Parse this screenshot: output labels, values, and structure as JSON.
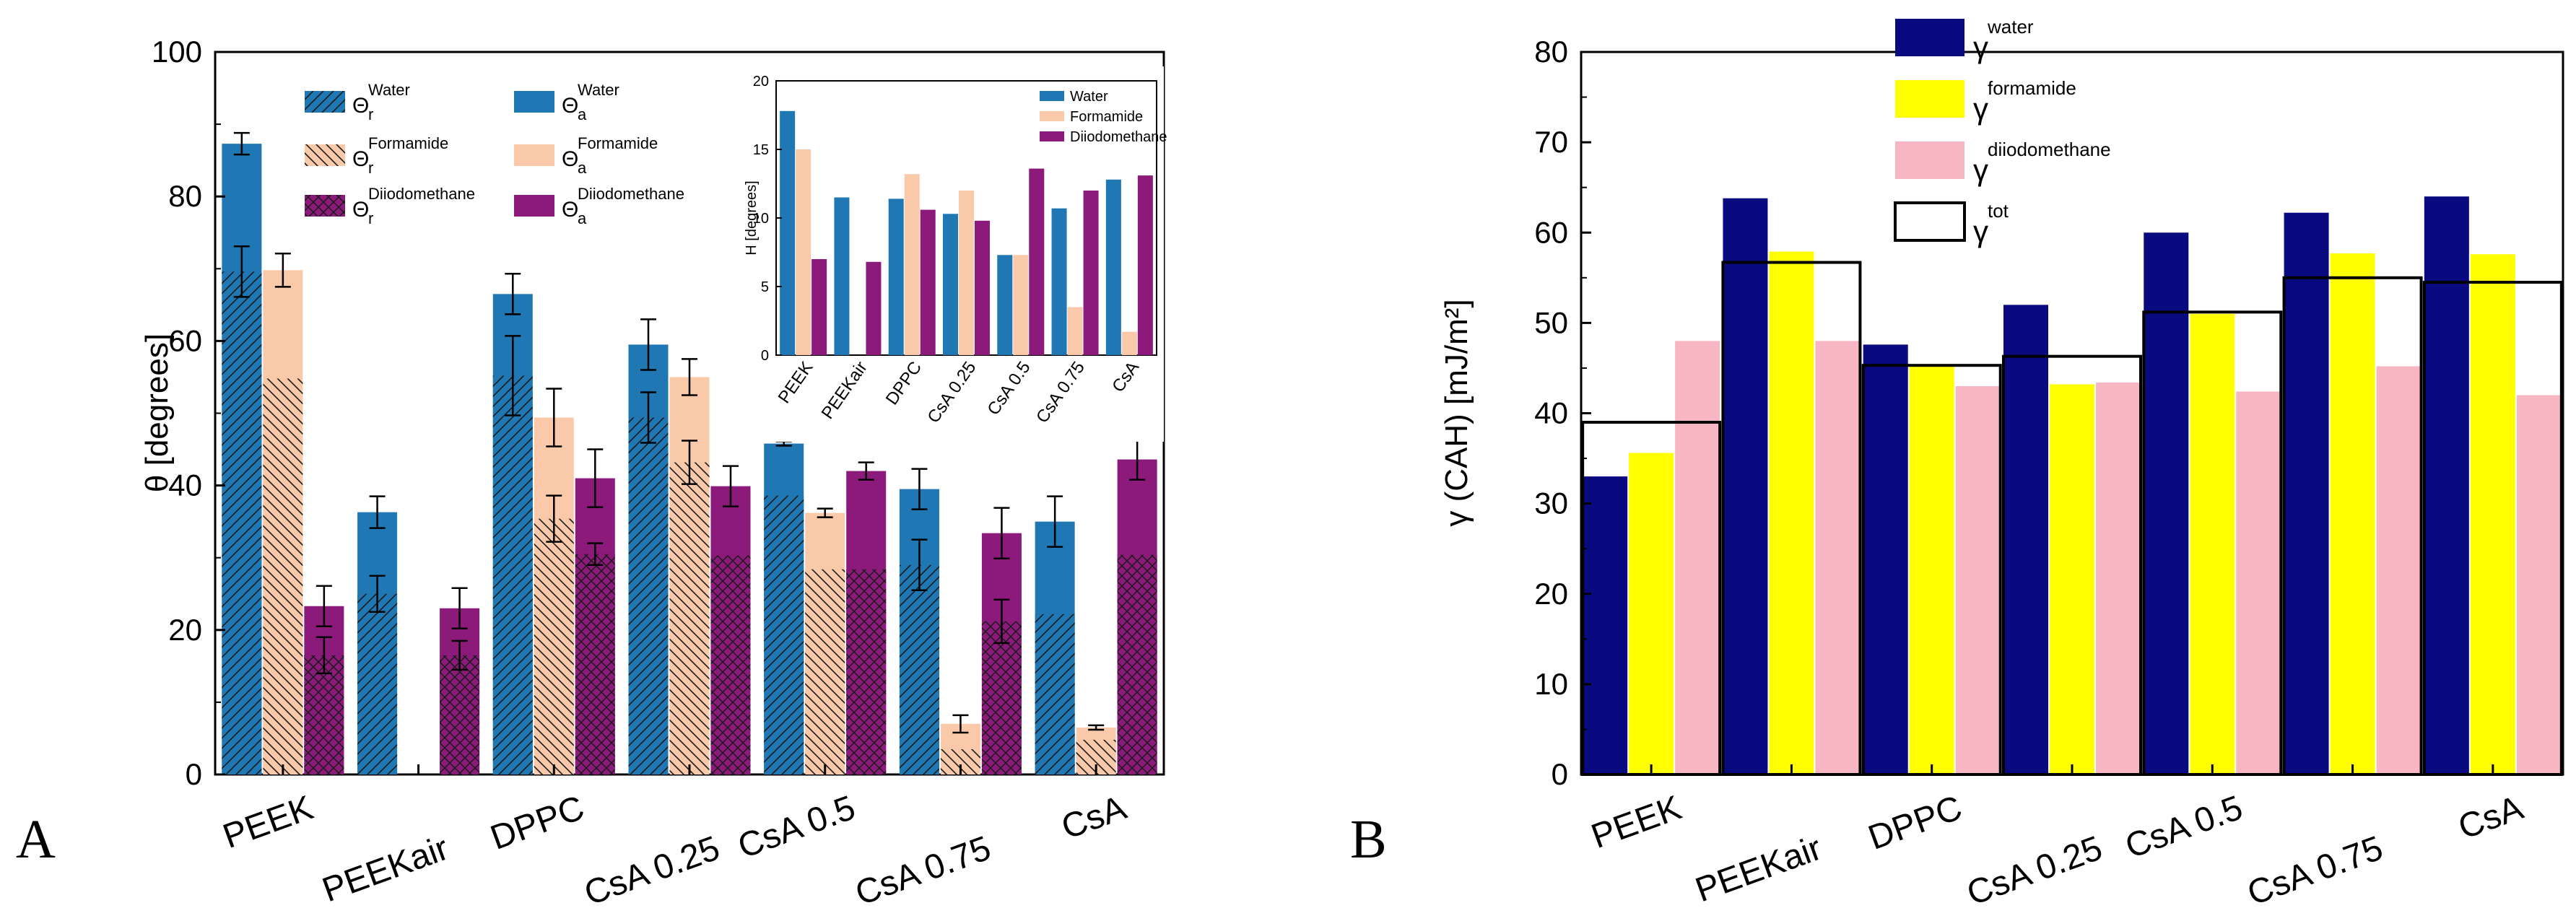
{
  "chart_data": [
    {
      "panel": "A",
      "type": "bar",
      "ylabel": "θ [degrees]",
      "ylim": [
        0,
        100
      ],
      "yticks": [
        "0",
        "20",
        "40",
        "60",
        "80",
        "100"
      ],
      "categories": [
        "PEEK",
        "PEEKair",
        "DPPC",
        "CsA 0.25",
        "CsA 0.5",
        "CsA 0.75",
        "CsA"
      ],
      "series": [
        {
          "name": "Water",
          "color": "#1f77b4",
          "advancing": [
            87.3,
            36.3,
            66.5,
            59.5,
            45.8,
            39.5,
            35.0
          ],
          "advancing_err": [
            1.5,
            2.2,
            2.8,
            3.5,
            0.3,
            2.8,
            3.5
          ],
          "receding": [
            69.6,
            25.0,
            55.2,
            49.4,
            38.6,
            29.0,
            22.2
          ],
          "receding_err": [
            3.5,
            2.5,
            5.5,
            3.5,
            0,
            3.5,
            0
          ]
        },
        {
          "name": "Formamide",
          "color": "#f9c9a9",
          "advancing": [
            69.8,
            null,
            49.4,
            55.0,
            36.2,
            7.0,
            6.5
          ],
          "advancing_err": [
            2.3,
            0,
            4.0,
            2.5,
            0.6,
            1.2,
            0.3
          ],
          "receding": [
            54.8,
            null,
            35.4,
            43.2,
            28.4,
            3.5,
            4.8
          ],
          "receding_err": [
            0,
            0,
            3.2,
            3.0,
            0,
            0,
            0
          ]
        },
        {
          "name": "Diiodomethane",
          "color": "#8c1a7a",
          "advancing": [
            23.3,
            23.0,
            41.0,
            39.9,
            42.0,
            33.4,
            43.6
          ],
          "advancing_err": [
            2.8,
            2.8,
            4.0,
            2.8,
            1.2,
            3.5,
            2.8
          ],
          "receding": [
            16.5,
            16.5,
            30.5,
            30.3,
            28.4,
            21.2,
            30.4
          ],
          "receding_err": [
            2.5,
            2.0,
            1.5,
            0,
            0,
            3.0,
            0
          ]
        }
      ],
      "legend": [
        {
          "symbol": "Θ",
          "sub": "r",
          "sup": "Water"
        },
        {
          "symbol": "Θ",
          "sub": "a",
          "sup": "Water"
        },
        {
          "symbol": "Θ",
          "sub": "r",
          "sup": "Formamide"
        },
        {
          "symbol": "Θ",
          "sub": "a",
          "sup": "Formamide"
        },
        {
          "symbol": "Θ",
          "sub": "r",
          "sup": "Diiodomethane"
        },
        {
          "symbol": "Θ",
          "sub": "a",
          "sup": "Diiodomethane"
        }
      ],
      "inset": {
        "type": "bar",
        "ylabel": "H [degrees]",
        "ylim": [
          0,
          20
        ],
        "yticks": [
          "0",
          "5",
          "10",
          "15",
          "20"
        ],
        "categories": [
          "PEEK",
          "PEEKair",
          "DPPC",
          "CsA 0.25",
          "CsA 0.5",
          "CsA 0.75",
          "CsA"
        ],
        "series": [
          {
            "name": "Water",
            "color": "#1f77b4",
            "values": [
              17.8,
              11.5,
              11.4,
              10.3,
              7.3,
              10.7,
              12.8
            ]
          },
          {
            "name": "Formamide",
            "color": "#f9c9a9",
            "values": [
              15.0,
              null,
              13.2,
              12.0,
              7.3,
              3.5,
              1.7
            ]
          },
          {
            "name": "Diiodomethane",
            "color": "#8c1a7a",
            "values": [
              7.0,
              6.8,
              10.6,
              9.8,
              13.6,
              12.0,
              13.1
            ]
          }
        ]
      }
    },
    {
      "panel": "B",
      "type": "bar",
      "ylabel": "γ (CAH) [mJ/m²]",
      "ylim": [
        0,
        80
      ],
      "yticks": [
        "0",
        "10",
        "20",
        "30",
        "40",
        "50",
        "60",
        "70",
        "80"
      ],
      "categories": [
        "PEEK",
        "PEEKair",
        "DPPC",
        "CsA 0.25",
        "CsA 0.5",
        "CsA 0.75",
        "CsA"
      ],
      "series": [
        {
          "name": "water",
          "color": "#0a0a80",
          "values": [
            33.0,
            63.8,
            47.6,
            52.0,
            60.0,
            62.2,
            64.0
          ]
        },
        {
          "name": "formamide",
          "color": "#ffff00",
          "values": [
            35.6,
            57.9,
            45.2,
            43.2,
            51.0,
            57.7,
            57.6
          ]
        },
        {
          "name": "diiodomethane",
          "color": "#f7b6c2",
          "values": [
            48.0,
            48.0,
            43.0,
            43.4,
            42.4,
            45.2,
            42.0
          ]
        },
        {
          "name": "tot",
          "color": "none",
          "values": [
            39.0,
            56.7,
            45.3,
            46.3,
            51.2,
            55.0,
            54.5
          ]
        }
      ],
      "legend": [
        {
          "symbol": "γ",
          "sup": "water"
        },
        {
          "symbol": "γ",
          "sup": "formamide"
        },
        {
          "symbol": "γ",
          "sup": "diiodomethane"
        },
        {
          "symbol": "γ",
          "sup": "tot"
        }
      ]
    }
  ]
}
